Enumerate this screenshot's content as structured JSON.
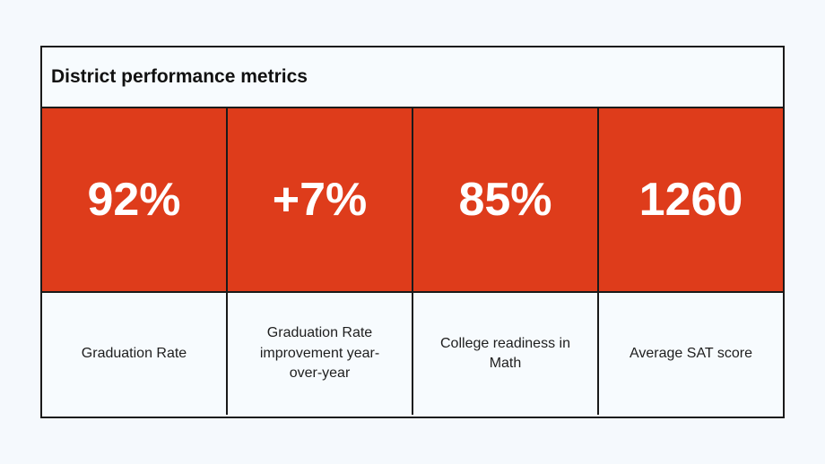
{
  "table": {
    "title": "District performance metrics",
    "accent_color": "#de3c1b",
    "metrics": [
      {
        "value": "92%",
        "label": "Graduation Rate"
      },
      {
        "value": "+7%",
        "label": "Graduation Rate improvement year-over-year"
      },
      {
        "value": "85%",
        "label": "College readiness in Math"
      },
      {
        "value": "1260",
        "label": "Average SAT score"
      }
    ]
  }
}
